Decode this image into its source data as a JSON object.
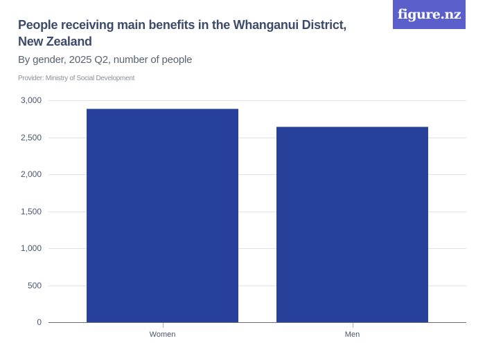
{
  "header": {
    "title": "People receiving main benefits in the Whanganui District, New Zealand",
    "subtitle": "By gender, 2025 Q2, number of people",
    "provider": "Provider: Ministry of Social Development",
    "logo": "figure.nz"
  },
  "colors": {
    "bar": "#27419b",
    "logo_bg": "#5a5fcc",
    "title": "#3d4b6b"
  },
  "chart_data": {
    "type": "bar",
    "title": "People receiving main benefits in the Whanganui District, New Zealand",
    "subtitle": "By gender, 2025 Q2, number of people",
    "categories": [
      "Women",
      "Men"
    ],
    "values": [
      2888,
      2645
    ],
    "xlabel": "",
    "ylabel": "",
    "ylim": [
      0,
      3000
    ],
    "yticks": [
      0,
      500,
      1000,
      1500,
      2000,
      2500,
      3000
    ],
    "ytick_labels": [
      "0",
      "500",
      "1,000",
      "1,500",
      "2,000",
      "2,500",
      "3,000"
    ],
    "grid": true,
    "legend": null
  }
}
